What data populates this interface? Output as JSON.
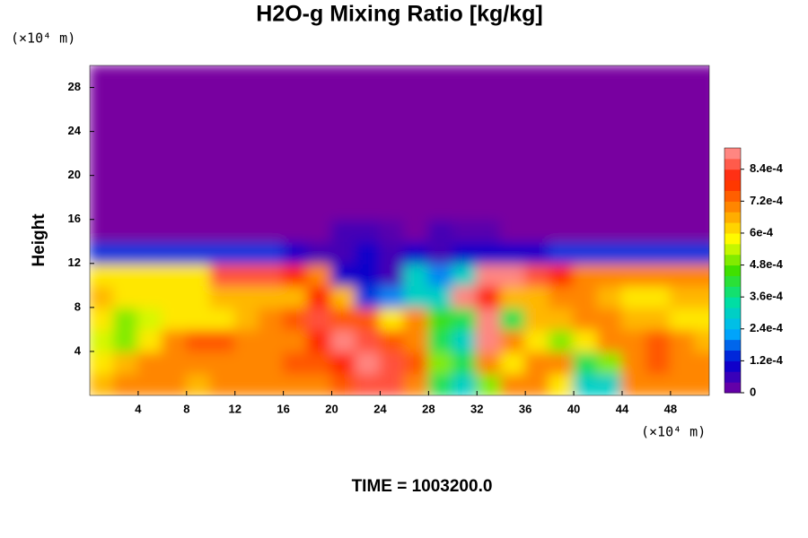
{
  "chart_data": {
    "type": "heatmap",
    "title": "H2O-g Mixing Ratio [kg/kg]",
    "ylabel": "Height",
    "xunit": "(×10⁴ m)",
    "yunit": "(×10⁴ m)",
    "footer": "TIME = 1003200.0",
    "xlim": [
      0,
      51.2
    ],
    "ylim": [
      0,
      30
    ],
    "xticks": [
      4,
      8,
      12,
      16,
      20,
      24,
      28,
      32,
      36,
      40,
      44,
      48
    ],
    "yticks": [
      4,
      8,
      12,
      16,
      20,
      24,
      28
    ],
    "clim": [
      0,
      0.00092
    ],
    "cticks": [
      0,
      {
        "value": 0.00012,
        "label": "1.2e-4"
      },
      {
        "value": 0.00024,
        "label": "2.4e-4"
      },
      {
        "value": 0.00036,
        "label": "3.6e-4"
      },
      {
        "value": 0.00048,
        "label": "4.8e-4"
      },
      {
        "value": 0.0006,
        "label": "6e-4"
      },
      {
        "value": 0.00072,
        "label": "7.2e-4"
      },
      {
        "value": 0.00084,
        "label": "8.4e-4"
      }
    ],
    "colormap": [
      "#7800a0",
      "#0000d0",
      "#00b4ff",
      "#00e0a0",
      "#40e000",
      "#ffff00",
      "#ff9000",
      "#ff2000",
      "#ff9c9c"
    ],
    "x": [
      1,
      3,
      5,
      7,
      9,
      11,
      13,
      15,
      17,
      19,
      21,
      23,
      25,
      27,
      29,
      31,
      33,
      35,
      37,
      39,
      41,
      43,
      45,
      47,
      49,
      51
    ],
    "y": [
      1,
      3,
      5,
      7,
      9,
      11,
      13,
      15,
      17,
      19,
      21,
      23,
      25,
      27,
      29
    ],
    "z": [
      [
        0.00065,
        0.0007,
        0.0007,
        0.0007,
        0.00065,
        0.0007,
        0.0007,
        0.0007,
        0.0007,
        0.0007,
        0.00075,
        0.00085,
        0.00085,
        0.0007,
        0.0004,
        0.0003,
        0.0005,
        0.0007,
        0.0007,
        0.0006,
        0.0003,
        0.0003,
        0.0007,
        0.0007,
        0.0007,
        0.0007
      ],
      [
        0.0006,
        0.00065,
        0.0007,
        0.0007,
        0.0007,
        0.0007,
        0.0007,
        0.0007,
        0.00075,
        0.00075,
        0.0008,
        0.0009,
        0.00085,
        0.00075,
        0.0005,
        0.0004,
        0.0007,
        0.0006,
        0.0007,
        0.0007,
        0.0004,
        0.0005,
        0.0007,
        0.00075,
        0.0007,
        0.0007
      ],
      [
        0.00055,
        0.0005,
        0.0006,
        0.0007,
        0.00075,
        0.00075,
        0.0007,
        0.0007,
        0.0007,
        0.0008,
        0.0009,
        0.00085,
        0.00075,
        0.0007,
        0.0004,
        0.0003,
        0.0009,
        0.0007,
        0.0006,
        0.0005,
        0.0006,
        0.0007,
        0.0007,
        0.00075,
        0.0007,
        0.00065
      ],
      [
        0.0006,
        0.0005,
        0.00055,
        0.0006,
        0.0006,
        0.0006,
        0.00065,
        0.0007,
        0.00075,
        0.00085,
        0.00075,
        0.00075,
        0.0006,
        0.0007,
        0.00045,
        0.0004,
        0.0009,
        0.0004,
        0.00065,
        0.00065,
        0.0007,
        0.0007,
        0.00065,
        0.00065,
        0.0006,
        0.0006
      ],
      [
        0.00065,
        0.0006,
        0.0006,
        0.0006,
        0.0006,
        0.00065,
        0.00065,
        0.00065,
        0.00065,
        0.0008,
        0.00065,
        0.00015,
        0.0002,
        0.0003,
        0.0003,
        0.0009,
        0.0008,
        0.00065,
        0.00065,
        0.0007,
        0.0007,
        0.00065,
        0.0006,
        0.0006,
        0.00065,
        0.00065
      ],
      [
        0.0006,
        0.0006,
        0.0006,
        0.0006,
        0.0006,
        0.00085,
        0.00085,
        0.00085,
        0.0008,
        0.0007,
        0.0001,
        0.0001,
        5e-05,
        0.0003,
        0.0002,
        0.0003,
        0.0009,
        0.0009,
        0.00085,
        0.0008,
        0.0007,
        0.0007,
        0.0007,
        0.0007,
        0.0007,
        0.0007
      ],
      [
        0.00015,
        0.00015,
        0.00015,
        0.00015,
        0.00015,
        0.00015,
        0.00015,
        0.00015,
        0.0001,
        5e-05,
        5e-05,
        0.0001,
        5e-05,
        0.0001,
        5e-05,
        0.0001,
        0.0001,
        0.0001,
        0.0001,
        0.00015,
        0.00015,
        0.00015,
        0.00015,
        0.00015,
        0.00015,
        0.00015
      ],
      [
        0,
        0,
        0,
        0,
        0,
        0,
        0,
        0,
        0,
        0,
        5e-05,
        5e-05,
        3e-05,
        0,
        5e-05,
        3e-05,
        3e-05,
        0,
        0,
        0,
        0,
        0,
        0,
        0,
        0,
        0
      ],
      [
        0,
        0,
        0,
        0,
        0,
        0,
        0,
        0,
        0,
        0,
        0,
        0,
        0,
        0,
        0,
        0,
        0,
        0,
        0,
        0,
        0,
        0,
        0,
        0,
        0,
        0
      ],
      [
        0,
        0,
        0,
        0,
        0,
        0,
        0,
        0,
        0,
        0,
        0,
        0,
        0,
        0,
        0,
        0,
        0,
        0,
        0,
        0,
        0,
        0,
        0,
        0,
        0,
        0
      ],
      [
        0,
        0,
        0,
        0,
        0,
        0,
        0,
        0,
        0,
        0,
        0,
        0,
        0,
        0,
        0,
        0,
        0,
        0,
        0,
        0,
        0,
        0,
        0,
        0,
        0,
        0
      ],
      [
        0,
        0,
        0,
        0,
        0,
        0,
        0,
        0,
        0,
        0,
        0,
        0,
        0,
        0,
        0,
        0,
        0,
        0,
        0,
        0,
        0,
        0,
        0,
        0,
        0,
        0
      ],
      [
        0,
        0,
        0,
        0,
        0,
        0,
        0,
        0,
        0,
        0,
        0,
        0,
        0,
        0,
        0,
        0,
        0,
        0,
        0,
        0,
        0,
        0,
        0,
        0,
        0,
        0
      ],
      [
        0,
        0,
        0,
        0,
        0,
        0,
        0,
        0,
        0,
        0,
        0,
        0,
        0,
        0,
        0,
        0,
        0,
        0,
        0,
        0,
        0,
        0,
        0,
        0,
        0,
        0
      ],
      [
        0,
        0,
        0,
        0,
        0,
        0,
        0,
        0,
        0,
        0,
        0,
        0,
        0,
        0,
        0,
        0,
        0,
        0,
        0,
        0,
        0,
        0,
        0,
        0,
        0,
        0
      ]
    ]
  }
}
